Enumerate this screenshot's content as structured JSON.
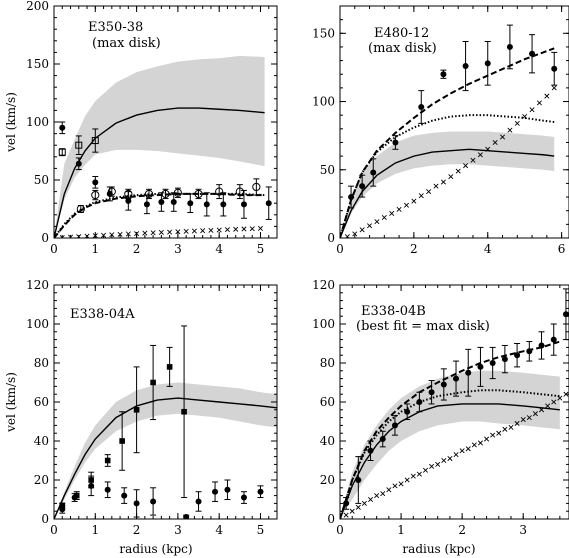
{
  "chart_data": [
    {
      "type": "scatter",
      "title": "E350-38",
      "subtitle": "(max disk)",
      "xlabel": "",
      "ylabel": "vel (km/s)",
      "xlim": [
        0,
        5.4
      ],
      "ylim": [
        0,
        200
      ],
      "xticks": [
        "0",
        "1",
        "2",
        "3",
        "4",
        "5"
      ],
      "yticks": [
        "0",
        "50",
        "100",
        "150",
        "200"
      ],
      "series": [
        {
          "kind": "band",
          "x": [
            0,
            0.25,
            0.5,
            0.75,
            1,
            1.5,
            2,
            2.5,
            3,
            3.5,
            4,
            4.5,
            5.1
          ],
          "low": [
            0,
            33,
            52,
            63,
            72,
            76,
            76,
            75,
            73,
            71,
            69,
            66,
            62
          ],
          "high": [
            0,
            64,
            85,
            105,
            118,
            134,
            143,
            148,
            152,
            154,
            155,
            157,
            156
          ]
        },
        {
          "kind": "line",
          "style": "solid",
          "x": [
            0,
            0.25,
            0.5,
            0.75,
            1,
            1.5,
            2,
            2.5,
            3,
            3.5,
            4,
            4.5,
            5.1
          ],
          "y": [
            0,
            38,
            60,
            75,
            86,
            99,
            106,
            110,
            112,
            112,
            111,
            110,
            108
          ]
        },
        {
          "kind": "line",
          "style": "dashed",
          "x": [
            0,
            0.25,
            0.5,
            0.75,
            1,
            1.5,
            2,
            2.5,
            3,
            3.5,
            4,
            4.5,
            5.1
          ],
          "y": [
            0,
            11,
            20,
            26,
            30,
            34,
            36,
            37,
            38,
            38,
            38,
            37,
            37
          ]
        },
        {
          "kind": "line",
          "style": "dotted",
          "x": [
            0,
            0.25,
            0.5,
            0.75,
            1,
            1.5,
            2,
            2.5,
            3,
            3.5,
            4,
            4.5,
            5.1
          ],
          "y": [
            0,
            12,
            21,
            27,
            31,
            35,
            37,
            38,
            38,
            38,
            38,
            38,
            37
          ]
        },
        {
          "kind": "points",
          "marker": "cross",
          "x": [
            0.2,
            0.4,
            0.6,
            0.8,
            1.0,
            1.2,
            1.4,
            1.6,
            1.8,
            2.0,
            2.2,
            2.4,
            2.6,
            2.8,
            3.0,
            3.2,
            3.4,
            3.6,
            3.8,
            4.0,
            4.2,
            4.4,
            4.6,
            4.8,
            5.0
          ],
          "y": [
            0.4,
            0.8,
            1.2,
            1.6,
            2.0,
            2.4,
            2.8,
            3.1,
            3.5,
            3.8,
            4.2,
            4.5,
            4.8,
            5.1,
            5.4,
            5.7,
            6.0,
            6.3,
            6.6,
            6.9,
            7.2,
            7.5,
            7.8,
            8.0,
            8.3
          ]
        },
        {
          "kind": "points",
          "marker": "open-square",
          "x": [
            0.2,
            0.6,
            1.0
          ],
          "y": [
            74,
            80,
            84
          ],
          "err": [
            3,
            8,
            10
          ]
        },
        {
          "kind": "points",
          "marker": "filled-circle",
          "x": [
            0.2,
            0.6,
            1.0,
            1.35,
            1.8,
            2.25,
            2.6,
            2.9,
            3.3,
            3.7,
            4.1,
            4.6,
            5.2
          ],
          "y": [
            95,
            64,
            48,
            38,
            32,
            29,
            31,
            31,
            30,
            29,
            29,
            29,
            30
          ],
          "err": [
            5,
            5,
            5,
            6,
            8,
            8,
            8,
            8,
            8,
            10,
            10,
            12,
            14
          ]
        },
        {
          "kind": "points",
          "marker": "open-circle",
          "x": [
            0.65,
            1.0,
            1.4,
            1.8,
            2.3,
            2.7,
            3.0,
            3.5,
            4.0,
            4.5,
            4.9
          ],
          "y": [
            25,
            37,
            40,
            38,
            38,
            38,
            39,
            38,
            40,
            40,
            44
          ],
          "err": [
            3,
            4,
            4,
            4,
            4,
            4,
            4,
            4,
            6,
            6,
            7
          ]
        }
      ]
    },
    {
      "type": "scatter",
      "title": "E480-12",
      "subtitle": "(max disk)",
      "xlabel": "",
      "ylabel": "",
      "xlim": [
        0,
        6.2
      ],
      "ylim": [
        0,
        170
      ],
      "xticks": [
        "0",
        "2",
        "4",
        "6"
      ],
      "yticks": [
        "0",
        "50",
        "100",
        "150"
      ],
      "series": [
        {
          "kind": "band",
          "x": [
            0,
            0.3,
            0.6,
            1,
            1.5,
            2,
            2.5,
            3,
            3.5,
            4,
            4.5,
            5,
            5.5,
            5.8
          ],
          "low": [
            0,
            18,
            30,
            40,
            47,
            51,
            53,
            54,
            54,
            53,
            52,
            51,
            50,
            49
          ],
          "high": [
            0,
            30,
            48,
            60,
            70,
            75,
            77,
            78,
            78,
            78,
            77,
            76,
            75,
            74
          ]
        },
        {
          "kind": "line",
          "style": "solid",
          "x": [
            0,
            0.3,
            0.6,
            1,
            1.5,
            2,
            2.5,
            3,
            3.5,
            4,
            4.5,
            5,
            5.5,
            5.8
          ],
          "y": [
            0,
            20,
            34,
            46,
            55,
            60,
            63,
            64,
            65,
            64,
            63,
            62,
            61,
            60
          ]
        },
        {
          "kind": "line",
          "style": "dotted",
          "x": [
            0,
            0.3,
            0.6,
            1,
            1.5,
            2,
            2.5,
            3,
            3.5,
            4,
            4.5,
            5,
            5.5,
            5.8
          ],
          "y": [
            0,
            28,
            48,
            63,
            74,
            81,
            86,
            89,
            90,
            90,
            89,
            88,
            86,
            85
          ]
        },
        {
          "kind": "line",
          "style": "dashed",
          "x": [
            0,
            0.3,
            0.6,
            1,
            1.5,
            2,
            2.5,
            3,
            3.5,
            4,
            4.5,
            5,
            5.5,
            5.8
          ],
          "y": [
            0,
            28,
            48,
            64,
            77,
            88,
            98,
            106,
            113,
            119,
            125,
            131,
            136,
            139
          ]
        },
        {
          "kind": "points",
          "marker": "cross",
          "x": [
            0.2,
            0.4,
            0.6,
            0.8,
            1.0,
            1.2,
            1.4,
            1.6,
            1.8,
            2.0,
            2.2,
            2.4,
            2.6,
            2.8,
            3.0,
            3.2,
            3.4,
            3.6,
            3.8,
            4.0,
            4.2,
            4.4,
            4.6,
            4.8,
            5.0,
            5.2,
            5.4,
            5.6,
            5.8
          ],
          "y": [
            1,
            3,
            6,
            9,
            12,
            15,
            18,
            21,
            24,
            27,
            31,
            34,
            38,
            41,
            45,
            49,
            53,
            57,
            61,
            65,
            70,
            74,
            79,
            84,
            89,
            94,
            99,
            104,
            110
          ]
        },
        {
          "kind": "points",
          "marker": "filled-circle",
          "x": [
            0.3,
            0.6,
            0.9,
            1.5,
            2.2,
            2.8,
            3.4,
            4.0,
            4.6,
            5.2,
            5.8
          ],
          "y": [
            30,
            38,
            48,
            70,
            96,
            120,
            126,
            128,
            140,
            135,
            124
          ],
          "err": [
            8,
            8,
            10,
            5,
            12,
            3,
            18,
            16,
            16,
            14,
            12
          ]
        }
      ]
    },
    {
      "type": "scatter",
      "title": "E338-04A",
      "subtitle": "",
      "xlabel": "radius (kpc)",
      "ylabel": "vel (km/s)",
      "xlim": [
        0,
        5.4
      ],
      "ylim": [
        0,
        120
      ],
      "xticks": [
        "0",
        "1",
        "2",
        "3",
        "4",
        "5"
      ],
      "yticks": [
        "0",
        "20",
        "40",
        "60",
        "80",
        "100",
        "120"
      ],
      "series": [
        {
          "kind": "band",
          "x": [
            0,
            0.25,
            0.5,
            0.75,
            1,
            1.5,
            2,
            2.5,
            3,
            3.5,
            4,
            4.5,
            5,
            5.4
          ],
          "low": [
            0,
            10,
            20,
            29,
            36,
            45,
            50,
            53,
            54,
            53,
            52,
            50,
            48,
            47
          ],
          "high": [
            0,
            14,
            27,
            39,
            48,
            60,
            66,
            69,
            70,
            69,
            68,
            67,
            65,
            64
          ]
        },
        {
          "kind": "line",
          "style": "solid",
          "x": [
            0,
            0.25,
            0.5,
            0.75,
            1,
            1.5,
            2,
            2.5,
            3,
            3.5,
            4,
            4.5,
            5,
            5.4
          ],
          "y": [
            0,
            12,
            23,
            33,
            41,
            52,
            58,
            61,
            62,
            61,
            60,
            59,
            58,
            57
          ]
        },
        {
          "kind": "points",
          "marker": "filled-circle",
          "x": [
            0.2,
            0.5,
            0.9,
            1.3,
            1.7,
            2.0,
            2.4,
            3.2,
            3.5,
            3.9,
            4.2,
            4.6,
            5.0
          ],
          "y": [
            5,
            11,
            17,
            15,
            12,
            8,
            9,
            1,
            9,
            14,
            15,
            11,
            14
          ],
          "err": [
            2,
            2,
            5,
            4,
            4,
            7,
            7,
            1,
            5,
            5,
            5,
            3,
            3
          ]
        },
        {
          "kind": "points",
          "marker": "filled-square",
          "x": [
            0.2,
            0.55,
            0.9,
            1.3,
            1.65,
            2.0,
            2.4,
            2.8,
            3.15
          ],
          "y": [
            7,
            12,
            20,
            30,
            40,
            56,
            70,
            78,
            55
          ],
          "err": [
            1,
            2,
            4,
            3,
            15,
            22,
            19,
            10,
            44
          ]
        }
      ]
    },
    {
      "type": "scatter",
      "title": "E338-04B",
      "subtitle": "(best fit = max disk)",
      "xlabel": "radius (kpc)",
      "ylabel": "",
      "xlim": [
        0,
        3.75
      ],
      "ylim": [
        0,
        120
      ],
      "xticks": [
        "0",
        "1",
        "2",
        "3"
      ],
      "yticks": [
        "0",
        "20",
        "40",
        "60",
        "80",
        "100",
        "120"
      ],
      "series": [
        {
          "kind": "band",
          "x": [
            0,
            0.2,
            0.4,
            0.6,
            0.8,
            1.0,
            1.3,
            1.6,
            2.0,
            2.3,
            2.6,
            3.0,
            3.3,
            3.6
          ],
          "low": [
            0,
            10,
            20,
            28,
            35,
            40,
            45,
            48,
            50,
            50,
            49,
            48,
            47,
            46
          ],
          "high": [
            0,
            24,
            38,
            48,
            56,
            62,
            68,
            72,
            75,
            76,
            76,
            75,
            74,
            73
          ]
        },
        {
          "kind": "line",
          "style": "solid",
          "x": [
            0,
            0.2,
            0.4,
            0.6,
            0.8,
            1.0,
            1.3,
            1.6,
            2.0,
            2.3,
            2.6,
            3.0,
            3.3,
            3.6
          ],
          "y": [
            0,
            17,
            29,
            38,
            45,
            50,
            55,
            58,
            59,
            59,
            59,
            58,
            57,
            56
          ]
        },
        {
          "kind": "line",
          "style": "dotted",
          "x": [
            0,
            0.2,
            0.4,
            0.6,
            0.8,
            1.0,
            1.3,
            1.6,
            2.0,
            2.3,
            2.6,
            3.0,
            3.3,
            3.6
          ],
          "y": [
            0,
            20,
            34,
            43,
            50,
            55,
            60,
            63,
            65,
            66,
            66,
            65,
            64,
            63
          ]
        },
        {
          "kind": "line",
          "style": "dashed",
          "x": [
            0,
            0.2,
            0.4,
            0.6,
            0.8,
            1.0,
            1.3,
            1.6,
            2.0,
            2.3,
            2.6,
            3.0,
            3.3,
            3.6
          ],
          "y": [
            0,
            20,
            35,
            45,
            52,
            58,
            65,
            70,
            76,
            80,
            83,
            86,
            88,
            91
          ]
        },
        {
          "kind": "points",
          "marker": "cross",
          "x": [
            0.1,
            0.2,
            0.3,
            0.4,
            0.5,
            0.6,
            0.7,
            0.8,
            0.9,
            1.0,
            1.1,
            1.2,
            1.3,
            1.4,
            1.5,
            1.6,
            1.7,
            1.8,
            1.9,
            2.0,
            2.1,
            2.2,
            2.3,
            2.4,
            2.5,
            2.6,
            2.7,
            2.8,
            2.9,
            3.0,
            3.1,
            3.2,
            3.3,
            3.4,
            3.5,
            3.6,
            3.7
          ],
          "y": [
            2,
            4,
            6,
            8,
            10,
            12,
            13,
            15,
            17,
            18,
            20,
            22,
            23,
            25,
            27,
            28,
            30,
            31,
            33,
            35,
            36,
            38,
            39,
            41,
            43,
            44,
            46,
            47,
            49,
            51,
            52,
            54,
            56,
            58,
            60,
            62,
            64
          ]
        },
        {
          "kind": "points",
          "marker": "filled-circle",
          "x": [
            0.1,
            0.3,
            0.5,
            0.7,
            0.9,
            1.1,
            1.3,
            1.5,
            1.7,
            1.9,
            2.1,
            2.3,
            2.5,
            2.7,
            2.9,
            3.1,
            3.3,
            3.5,
            3.7
          ],
          "y": [
            8,
            20,
            35,
            41,
            48,
            55,
            60,
            65,
            69,
            72,
            75,
            78,
            80,
            82,
            84,
            86,
            89,
            92,
            105
          ],
          "err": [
            3,
            12,
            5,
            4,
            5,
            4,
            5,
            6,
            8,
            9,
            12,
            10,
            8,
            7,
            6,
            5,
            7,
            8,
            13
          ]
        }
      ]
    }
  ]
}
